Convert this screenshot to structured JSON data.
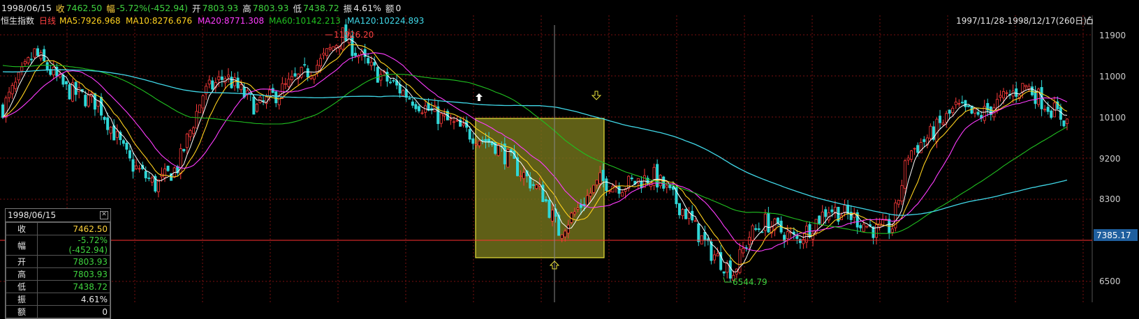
{
  "header": {
    "date": "1998/06/15",
    "close_label": "收",
    "close_value": "7462.50",
    "change_label": "幅",
    "change_value": "-5.72%(-452.94)",
    "open_label": "开",
    "open_value": "7803.93",
    "high_label": "高",
    "high_value": "7803.93",
    "low_label": "低",
    "low_value": "7438.72",
    "amplitude_label": "振",
    "amplitude_value": "4.61%",
    "amount_label": "额",
    "amount_value": "0"
  },
  "legend": {
    "index_name": "恒生指数",
    "period": "日线",
    "ma5": "MA5:7926.968",
    "ma10": "MA10:8276.676",
    "ma20": "MA20:8771.308",
    "ma60": "MA60:10142.213",
    "ma120": "MA120:10224.893",
    "date_range": "1997/11/28-1998/12/17(260日)"
  },
  "price_axis": {
    "ticks": [
      "11900",
      "11000",
      "10100",
      "9200",
      "8300",
      "6500"
    ],
    "current_price": "7385.17"
  },
  "annotations": {
    "high_marker": "11926.20",
    "low_marker": "6544.79"
  },
  "info_panel": {
    "date": "1998/06/15",
    "close_icon": "close-icon",
    "rows": [
      {
        "label": "收",
        "value": "7462.50"
      },
      {
        "label": "幅",
        "value": "-5.72%(-452.94)"
      },
      {
        "label": "开",
        "value": "7803.93"
      },
      {
        "label": "高",
        "value": "7803.93"
      },
      {
        "label": "低",
        "value": "7438.72"
      },
      {
        "label": "振",
        "value": "4.61%"
      },
      {
        "label": "额",
        "value": "0"
      }
    ]
  },
  "colors": {
    "up": "#ff3b3b",
    "down": "#2fd7d7",
    "ma5": "#ffffff",
    "ma10": "#ffd21e",
    "ma20": "#ff3cff",
    "ma60": "#20c020",
    "ma120": "#40d8e8",
    "grid": "#7a1010",
    "selection_fill": "#7a7a1e",
    "selection_border": "#e8e03a"
  },
  "chart_data": {
    "type": "candlestick",
    "title": "恒生指数 日线",
    "x_range": [
      "1997/11/28",
      "1998/12/17"
    ],
    "ylim": [
      6500,
      12200
    ],
    "y_ticks": [
      6500,
      7400,
      8300,
      9200,
      10100,
      11000,
      11900
    ],
    "current_price": 7385.17,
    "selected_date": "1998/06/15",
    "selected_bar": {
      "open": 7803.93,
      "high": 7803.93,
      "low": 7438.72,
      "close": 7462.5
    },
    "period_high": 11926.2,
    "period_low": 6544.79,
    "anchors": [
      {
        "i": 0,
        "p": 10300
      },
      {
        "i": 10,
        "p": 11500
      },
      {
        "i": 20,
        "p": 10700
      },
      {
        "i": 30,
        "p": 10400
      },
      {
        "i": 40,
        "p": 9100
      },
      {
        "i": 48,
        "p": 8600
      },
      {
        "i": 55,
        "p": 9000
      },
      {
        "i": 63,
        "p": 10600
      },
      {
        "i": 70,
        "p": 11000
      },
      {
        "i": 80,
        "p": 10300
      },
      {
        "i": 90,
        "p": 10800
      },
      {
        "i": 100,
        "p": 11300
      },
      {
        "i": 107,
        "p": 11900
      },
      {
        "i": 115,
        "p": 11200
      },
      {
        "i": 125,
        "p": 10700
      },
      {
        "i": 135,
        "p": 10200
      },
      {
        "i": 145,
        "p": 9800
      },
      {
        "i": 155,
        "p": 9500
      },
      {
        "i": 163,
        "p": 8900
      },
      {
        "i": 170,
        "p": 8400
      },
      {
        "i": 175,
        "p": 7600
      },
      {
        "i": 180,
        "p": 8000
      },
      {
        "i": 188,
        "p": 8700
      },
      {
        "i": 195,
        "p": 8600
      },
      {
        "i": 205,
        "p": 8800
      },
      {
        "i": 215,
        "p": 8000
      },
      {
        "i": 222,
        "p": 7200
      },
      {
        "i": 230,
        "p": 6700
      },
      {
        "i": 235,
        "p": 7500
      },
      {
        "i": 240,
        "p": 7800
      },
      {
        "i": 250,
        "p": 7400
      },
      {
        "i": 260,
        "p": 8100
      },
      {
        "i": 268,
        "p": 7900
      },
      {
        "i": 275,
        "p": 7600
      },
      {
        "i": 280,
        "p": 7700
      },
      {
        "i": 285,
        "p": 9300
      },
      {
        "i": 292,
        "p": 9700
      },
      {
        "i": 300,
        "p": 10300
      },
      {
        "i": 307,
        "p": 10100
      },
      {
        "i": 315,
        "p": 10500
      },
      {
        "i": 322,
        "p": 10800
      },
      {
        "i": 328,
        "p": 10400
      },
      {
        "i": 335,
        "p": 10000
      }
    ],
    "ma_end_values": {
      "MA5": 7926.968,
      "MA10": 8276.676,
      "MA20": 8771.308,
      "MA60": 10142.213,
      "MA120": 10224.893
    }
  }
}
